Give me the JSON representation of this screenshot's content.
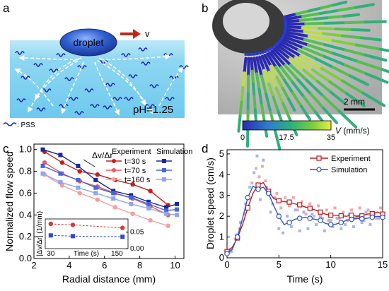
{
  "panels": {
    "a": {
      "label": "a",
      "droplet_label": "droplet",
      "velocity_label": "v",
      "ph_label": "pH=1.25",
      "legend_label": ": PSS",
      "legend_icon": "wavy-line-icon",
      "colors": {
        "water": "#8ed7f2",
        "droplet": "#2f5fd0",
        "arrow": "#c0281c",
        "pss": "#1f2fa8"
      }
    },
    "b": {
      "label": "b",
      "scalebar_label": "2 mm",
      "colorbar": {
        "ticks": [
          "0",
          "17.5",
          "35"
        ],
        "title_var": "V",
        "title_unit": " (mm/s)",
        "colors": [
          "#2a2ab0",
          "#2f7fd0",
          "#2fb07a",
          "#7fcf3a",
          "#e6ee40"
        ]
      }
    },
    "c": {
      "label": "c"
    },
    "d": {
      "label": "d"
    }
  },
  "chart_data": [
    {
      "type": "line",
      "panel": "c",
      "xlabel": "Radial distance (mm)",
      "ylabel": "Normalized flow speed",
      "xlim": [
        2,
        10.5
      ],
      "ylim": [
        0,
        1.05
      ],
      "xticks": [
        "2",
        "4",
        "6",
        "8",
        "10"
      ],
      "yticks": [
        "0.0",
        "0.2",
        "0.4",
        "0.6",
        "0.8",
        "1.0"
      ],
      "legend": {
        "experiment_header": "Experiment",
        "simulation_header": "Simulation",
        "placement": "top-right"
      },
      "annotation": "Δv/Δr",
      "series": [
        {
          "name": "t=30 s",
          "kind": "experiment",
          "color": "#c81e1e",
          "x": [
            2.6,
            3.6,
            4.6,
            5.6,
            6.6,
            7.6,
            8.6,
            9.6
          ],
          "y": [
            0.98,
            0.88,
            0.8,
            0.77,
            0.72,
            0.68,
            0.62,
            0.49
          ]
        },
        {
          "name": "t=70 s",
          "kind": "experiment",
          "color": "#e85a5a",
          "x": [
            2.6,
            3.6,
            4.6,
            5.6,
            6.6,
            7.6,
            8.6,
            9.6
          ],
          "y": [
            0.88,
            0.78,
            0.71,
            0.66,
            0.6,
            0.55,
            0.48,
            0.4
          ]
        },
        {
          "name": "t=160 s",
          "kind": "experiment",
          "color": "#f0a0a0",
          "x": [
            2.6,
            3.6,
            4.6,
            5.6,
            6.6,
            7.6,
            8.6,
            9.6
          ],
          "y": [
            0.77,
            0.67,
            0.6,
            0.54,
            0.47,
            0.41,
            0.35,
            0.3
          ]
        },
        {
          "name": "t=30 s",
          "kind": "simulation",
          "color": "#1a2a9a",
          "x": [
            2.5,
            3.5,
            4.5,
            5.5,
            6.5,
            7.5,
            8.5,
            9.5,
            10.1
          ],
          "y": [
            1.0,
            0.95,
            0.85,
            0.72,
            0.62,
            0.58,
            0.52,
            0.47,
            0.5
          ]
        },
        {
          "name": "t=70 s",
          "kind": "simulation",
          "color": "#4a64d8",
          "x": [
            2.5,
            3.5,
            4.5,
            5.5,
            6.5,
            7.5,
            8.5,
            9.5,
            10.1
          ],
          "y": [
            0.85,
            0.78,
            0.72,
            0.65,
            0.6,
            0.56,
            0.5,
            0.44,
            0.45
          ]
        },
        {
          "name": "t=160 s",
          "kind": "simulation",
          "color": "#8fa6ec",
          "x": [
            2.5,
            3.5,
            4.5,
            5.5,
            6.5,
            7.5,
            8.5,
            9.5,
            10.1
          ],
          "y": [
            0.78,
            0.7,
            0.65,
            0.6,
            0.55,
            0.5,
            0.46,
            0.41,
            0.4
          ]
        }
      ],
      "inset": {
        "xlabel": "Time (s)",
        "ylabel": "|Δv/Δr| (1/mm)",
        "xticks": [
          "30",
          "150"
        ],
        "yticks": [
          "0.00",
          "0.05"
        ],
        "xlim": [
          20,
          170
        ],
        "ylim": [
          0,
          0.09
        ],
        "series": [
          {
            "kind": "experiment",
            "color": "#d43a3a",
            "x": [
              30,
              70,
              160
            ],
            "y": [
              0.075,
              0.072,
              0.063
            ]
          },
          {
            "kind": "simulation",
            "color": "#3347c8",
            "x": [
              30,
              70,
              160
            ],
            "y": [
              0.04,
              0.038,
              0.036
            ]
          }
        ]
      }
    },
    {
      "type": "line",
      "panel": "d",
      "xlabel": "Time (s)",
      "ylabel": "Droplet speed (cm/s)",
      "xlim": [
        0,
        15
      ],
      "ylim": [
        0,
        5.2
      ],
      "xticks": [
        "0",
        "5",
        "10",
        "15"
      ],
      "yticks": [
        "0",
        "1",
        "2",
        "3",
        "4",
        "5"
      ],
      "legend": {
        "placement": "top-right"
      },
      "series": [
        {
          "name": "Experiment",
          "color": "#b81c1c",
          "x": [
            0,
            0.5,
            1,
            1.5,
            2,
            2.5,
            3,
            3.5,
            4,
            4.5,
            5,
            5.5,
            6,
            6.5,
            7,
            7.5,
            8,
            8.5,
            9,
            9.5,
            10,
            10.5,
            11,
            11.5,
            12,
            12.5,
            13,
            13.5,
            14,
            14.5,
            15
          ],
          "y": [
            0.3,
            0.5,
            0.95,
            1.6,
            2.4,
            3.1,
            3.5,
            3.62,
            3.2,
            2.85,
            2.75,
            2.7,
            2.68,
            2.6,
            2.55,
            2.45,
            2.38,
            2.3,
            2.2,
            2.1,
            2.05,
            2.05,
            2.02,
            2.0,
            2.05,
            2.0,
            2.02,
            2.1,
            2.12,
            2.2,
            2.1
          ]
        },
        {
          "name": "Simulation",
          "color": "#2e54c8",
          "x": [
            0,
            0.5,
            1,
            1.5,
            2,
            2.5,
            3,
            3.5,
            4,
            4.5,
            5,
            5.5,
            6,
            6.5,
            7,
            7.5,
            8,
            8.5,
            9,
            9.5,
            10,
            10.5,
            11,
            11.5,
            12,
            12.5,
            13,
            13.5,
            14,
            14.5,
            15
          ],
          "y": [
            0.2,
            0.4,
            1.0,
            1.9,
            2.9,
            3.45,
            3.3,
            3.4,
            3.1,
            2.5,
            2.0,
            1.6,
            1.7,
            1.85,
            1.9,
            1.95,
            1.9,
            1.85,
            1.8,
            1.65,
            1.6,
            1.62,
            1.7,
            1.8,
            1.85,
            1.9,
            1.88,
            1.9,
            1.95,
            2.0,
            1.95
          ]
        }
      ],
      "raw_experiment": {
        "color": "#f2a8a8",
        "x": [
          0.3,
          0.8,
          1.2,
          1.7,
          2.1,
          2.4,
          2.8,
          3.1,
          3.4,
          3.7,
          4.1,
          4.4,
          4.8,
          5.2,
          5.6,
          6.0,
          6.4,
          6.8,
          7.2,
          7.6,
          8.0,
          8.4,
          8.8,
          9.2,
          9.6,
          10.0,
          10.4,
          10.8,
          11.2,
          11.6,
          12.0,
          12.4,
          12.8,
          13.2,
          13.6,
          14.0,
          14.4,
          14.8
        ],
        "y": [
          0.4,
          0.9,
          1.4,
          2.1,
          2.9,
          3.6,
          4.3,
          3.9,
          4.4,
          3.7,
          3.1,
          2.6,
          3.1,
          2.4,
          2.9,
          2.5,
          2.9,
          2.3,
          2.7,
          2.1,
          2.6,
          2.0,
          2.5,
          1.9,
          2.3,
          1.8,
          2.4,
          1.9,
          2.2,
          1.8,
          2.3,
          1.9,
          2.4,
          1.8,
          2.3,
          2.2,
          1.9,
          2.4
        ]
      },
      "raw_simulation": {
        "color": "#a6b4f0",
        "x": [
          0.4,
          0.9,
          1.3,
          1.8,
          2.2,
          2.6,
          2.9,
          3.2,
          3.5,
          3.8,
          4.2,
          4.6,
          5.0,
          5.4,
          5.8,
          6.2,
          6.6,
          7.0,
          7.4,
          7.8,
          8.2,
          8.6,
          9.0,
          9.4,
          9.8,
          10.2,
          10.6,
          11.0,
          11.4,
          11.8,
          12.2,
          12.6,
          13.0,
          13.4,
          13.8,
          14.2,
          14.6
        ],
        "y": [
          0.3,
          1.1,
          1.7,
          2.6,
          3.4,
          4.1,
          4.9,
          2.8,
          4.7,
          3.4,
          2.2,
          2.9,
          1.4,
          1.2,
          2.0,
          1.5,
          2.3,
          1.3,
          2.2,
          1.4,
          2.1,
          1.6,
          2.0,
          1.3,
          1.8,
          1.5,
          1.9,
          1.4,
          1.6,
          2.1,
          1.5,
          2.0,
          1.7,
          2.2,
          1.6,
          2.1,
          1.9
        ]
      }
    }
  ]
}
